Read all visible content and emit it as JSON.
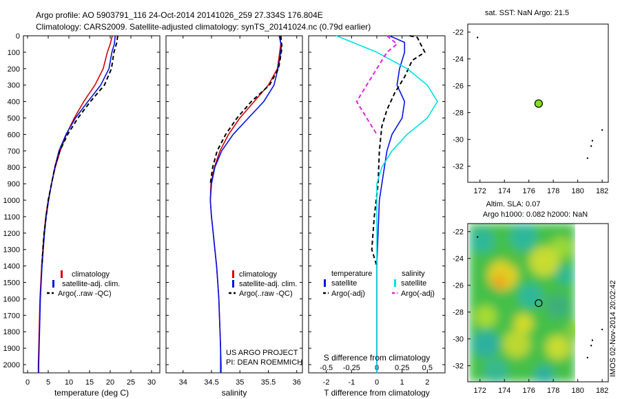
{
  "header": {
    "line1": "Argo profile: AO 5903791_116 24-Oct-2014 20141026_259 27.334S 176.804E",
    "line2": "Climatology: CARS2009. Satellite-adjusted climatology: synTS_20141024.nc (0.79d earlier)"
  },
  "footer": {
    "project": "US ARGO PROJECT",
    "pi": "PI: DEAN ROEMMICH",
    "stamp": "IMOS 02-Nov-2014 20:02:42"
  },
  "colors": {
    "climatology": "#d00000",
    "satellite": "#0010e0",
    "argo": "#000000",
    "sat_salinity": "#00e0e0",
    "argo_salinity": "#e020e0",
    "sst_marker": "#88dd22"
  },
  "chart_data": [
    {
      "type": "line",
      "id": "temperature",
      "xlabel": "temperature (deg C)",
      "xlim": [
        -1,
        32
      ],
      "ylim": [
        0,
        2050
      ],
      "x_ticks": [
        "0",
        "5",
        "10",
        "15",
        "20",
        "25",
        "30"
      ],
      "y_ticks": [
        "0",
        "100",
        "200",
        "300",
        "400",
        "500",
        "600",
        "700",
        "800",
        "900",
        "1000",
        "1100",
        "1200",
        "1300",
        "1400",
        "1500",
        "1600",
        "1700",
        "1800",
        "1900",
        "2000"
      ],
      "legend": [
        "climatology",
        "satellite-adj. clim.",
        "Argo(..raw -QC)"
      ],
      "series": [
        {
          "name": "climatology",
          "style": "solid",
          "color": "#d00000",
          "points": [
            [
              20.5,
              0
            ],
            [
              20,
              50
            ],
            [
              19.3,
              100
            ],
            [
              18.3,
              200
            ],
            [
              16.3,
              300
            ],
            [
              13.6,
              400
            ],
            [
              11.3,
              500
            ],
            [
              9.4,
              600
            ],
            [
              7.9,
              700
            ],
            [
              6.7,
              800
            ],
            [
              5.8,
              900
            ],
            [
              5,
              1000
            ],
            [
              4.4,
              1100
            ],
            [
              4,
              1200
            ],
            [
              3.7,
              1300
            ],
            [
              3.4,
              1400
            ],
            [
              3.2,
              1500
            ],
            [
              3,
              1600
            ],
            [
              2.9,
              1700
            ],
            [
              2.8,
              1800
            ],
            [
              2.7,
              1900
            ],
            [
              2.6,
              2000
            ],
            [
              2.6,
              2050
            ]
          ]
        },
        {
          "name": "satellite-adj. clim.",
          "style": "solid",
          "color": "#0010e0",
          "points": [
            [
              21.2,
              0
            ],
            [
              21,
              50
            ],
            [
              20.4,
              100
            ],
            [
              19.7,
              200
            ],
            [
              17.7,
              300
            ],
            [
              14.6,
              400
            ],
            [
              11.6,
              500
            ],
            [
              9.3,
              600
            ],
            [
              7.6,
              700
            ],
            [
              6.6,
              800
            ],
            [
              5.8,
              900
            ],
            [
              5.1,
              1000
            ],
            [
              4.5,
              1100
            ],
            [
              4.1,
              1200
            ],
            [
              3.8,
              1300
            ],
            [
              3.5,
              1400
            ],
            [
              3.3,
              1500
            ],
            [
              3.1,
              1600
            ],
            [
              3,
              1700
            ],
            [
              2.9,
              1800
            ],
            [
              2.8,
              1900
            ],
            [
              2.7,
              2000
            ],
            [
              2.7,
              2050
            ]
          ]
        },
        {
          "name": "Argo(..raw -QC)",
          "style": "dashed",
          "color": "#000000",
          "points": [
            [
              21.8,
              0
            ],
            [
              21.6,
              40
            ],
            [
              20.9,
              100
            ],
            [
              20.3,
              200
            ],
            [
              18.6,
              300
            ],
            [
              15.2,
              400
            ],
            [
              12.2,
              500
            ],
            [
              9.7,
              600
            ],
            [
              7.8,
              700
            ],
            [
              6.6,
              800
            ],
            [
              5.8,
              900
            ],
            [
              5,
              1000
            ],
            [
              4.5,
              1100
            ],
            [
              4,
              1200
            ],
            [
              3.7,
              1300
            ],
            [
              3.5,
              1400
            ]
          ]
        }
      ]
    },
    {
      "type": "line",
      "id": "salinity",
      "xlabel": "salinity",
      "xlim": [
        33.7,
        36.1
      ],
      "ylim": [
        0,
        2050
      ],
      "x_ticks": [
        "34",
        "34.5",
        "35",
        "35.5",
        "36"
      ],
      "legend": [
        "climatology",
        "satellite-adj. clim.",
        "Argo(..raw -QC)"
      ],
      "series": [
        {
          "name": "climatology",
          "style": "solid",
          "color": "#d00000",
          "points": [
            [
              35.7,
              0
            ],
            [
              35.72,
              50
            ],
            [
              35.7,
              100
            ],
            [
              35.66,
              200
            ],
            [
              35.5,
              300
            ],
            [
              35.25,
              400
            ],
            [
              35,
              500
            ],
            [
              34.8,
              600
            ],
            [
              34.65,
              700
            ],
            [
              34.55,
              800
            ],
            [
              34.49,
              900
            ],
            [
              34.48,
              1000
            ],
            [
              34.5,
              1100
            ],
            [
              34.53,
              1200
            ],
            [
              34.56,
              1300
            ],
            [
              34.59,
              1400
            ],
            [
              34.61,
              1500
            ],
            [
              34.63,
              1600
            ],
            [
              34.64,
              1700
            ],
            [
              34.65,
              1800
            ],
            [
              34.66,
              1900
            ],
            [
              34.67,
              2000
            ],
            [
              34.67,
              2050
            ]
          ]
        },
        {
          "name": "satellite-adj. clim.",
          "style": "solid",
          "color": "#0010e0",
          "points": [
            [
              35.69,
              0
            ],
            [
              35.73,
              60
            ],
            [
              35.71,
              120
            ],
            [
              35.67,
              200
            ],
            [
              35.6,
              300
            ],
            [
              35.42,
              400
            ],
            [
              35.15,
              500
            ],
            [
              34.88,
              600
            ],
            [
              34.68,
              700
            ],
            [
              34.56,
              800
            ],
            [
              34.5,
              900
            ],
            [
              34.48,
              1000
            ],
            [
              34.5,
              1100
            ],
            [
              34.53,
              1200
            ],
            [
              34.56,
              1300
            ],
            [
              34.59,
              1400
            ],
            [
              34.61,
              1500
            ],
            [
              34.63,
              1600
            ],
            [
              34.64,
              1700
            ],
            [
              34.65,
              1800
            ],
            [
              34.66,
              1900
            ],
            [
              34.66,
              2000
            ],
            [
              34.66,
              2050
            ]
          ]
        },
        {
          "name": "Argo(..raw -QC)",
          "style": "dashed",
          "color": "#000000",
          "points": [
            [
              35.72,
              0
            ],
            [
              35.74,
              70
            ],
            [
              35.72,
              120
            ],
            [
              35.68,
              200
            ],
            [
              35.52,
              300
            ],
            [
              35.2,
              400
            ],
            [
              34.95,
              500
            ],
            [
              34.75,
              600
            ],
            [
              34.6,
              700
            ],
            [
              34.52,
              800
            ],
            [
              34.48,
              900
            ]
          ]
        }
      ]
    },
    {
      "type": "line",
      "id": "difference",
      "xlabel": "T difference from climatology",
      "xlabel2": "S difference from climatology",
      "xlim": [
        -2.7,
        2.7
      ],
      "ylim": [
        0,
        2050
      ],
      "x_ticks": [
        "-2",
        "-1",
        "0",
        "1",
        "2"
      ],
      "x_ticks_s": [
        "-0.5",
        "-0.25",
        "0",
        "0.25",
        "0.5"
      ],
      "legend_titles": [
        "temperature",
        "salinity"
      ],
      "legend_temperature": [
        "satellite",
        "Argo(-adj)"
      ],
      "legend_salinity": [
        "satellite",
        "Argo(-adj)"
      ],
      "series": [
        {
          "name": "satellite",
          "group": "temperature",
          "style": "solid",
          "color": "#0010e0",
          "points": [
            [
              0.5,
              0
            ],
            [
              0.8,
              20
            ],
            [
              1.1,
              40
            ],
            [
              1.1,
              100
            ],
            [
              0.9,
              200
            ],
            [
              0.8,
              300
            ],
            [
              1.1,
              400
            ],
            [
              1,
              500
            ],
            [
              0.6,
              600
            ],
            [
              0.4,
              700
            ],
            [
              0.3,
              800
            ],
            [
              0.2,
              900
            ],
            [
              0.1,
              1000
            ],
            [
              0.05,
              1200
            ],
            [
              0,
              1400
            ],
            [
              0,
              2050
            ]
          ]
        },
        {
          "name": "Argo(-adj)",
          "group": "temperature",
          "style": "dashed",
          "color": "#000000",
          "points": [
            [
              1.3,
              0
            ],
            [
              1.6,
              10
            ],
            [
              1.9,
              100
            ],
            [
              1.4,
              150
            ],
            [
              1.1,
              250
            ],
            [
              0.7,
              350
            ],
            [
              0.4,
              450
            ],
            [
              0.2,
              550
            ],
            [
              0.1,
              700
            ],
            [
              0.05,
              900
            ],
            [
              -0.1,
              1100
            ],
            [
              -0.2,
              1300
            ],
            [
              0,
              1400
            ]
          ]
        },
        {
          "name": "satellite",
          "group": "salinity",
          "style": "solid",
          "color": "#00e0e0",
          "points": [
            [
              -0.4,
              0
            ],
            [
              -0.2,
              50
            ],
            [
              0,
              100
            ],
            [
              0.3,
              200
            ],
            [
              0.5,
              300
            ],
            [
              0.6,
              400
            ],
            [
              0.5,
              500
            ],
            [
              0.3,
              600
            ],
            [
              0.15,
              700
            ],
            [
              0.05,
              800
            ],
            [
              0,
              900
            ],
            [
              0,
              2050
            ]
          ]
        },
        {
          "name": "Argo(-adj)",
          "group": "salinity",
          "style": "dashed",
          "color": "#e020e0",
          "points": [
            [
              0.1,
              0
            ],
            [
              0.2,
              50
            ],
            [
              0.1,
              100
            ],
            [
              0,
              200
            ],
            [
              -0.1,
              300
            ],
            [
              -0.2,
              400
            ],
            [
              -0.1,
              500
            ],
            [
              0,
              600
            ]
          ]
        }
      ]
    },
    {
      "type": "scatter",
      "id": "sst-map",
      "title": "sat. SST: NaN Argo: 21.5",
      "xlim": [
        171,
        182.5
      ],
      "ylim": [
        -33.2,
        -21.4
      ],
      "x_ticks": [
        "172",
        "174",
        "176",
        "178",
        "180",
        "182"
      ],
      "y_ticks": [
        "-22",
        "-24",
        "-26",
        "-28",
        "-30",
        "-32"
      ],
      "argo_position": [
        176.8,
        -27.33
      ],
      "coast_points": [
        [
          171.8,
          -22.4
        ],
        [
          181.2,
          -30.1
        ],
        [
          181.1,
          -30.5
        ],
        [
          182,
          -29.3
        ],
        [
          180.8,
          -31.4
        ]
      ]
    },
    {
      "type": "heatmap",
      "id": "sla-map",
      "title": "Altim. SLA: 0.07",
      "subtitle": "Argo h1000: 0.082 h2000: NaN",
      "xlim": [
        171,
        182.5
      ],
      "ylim": [
        -33.2,
        -21.4
      ],
      "x_ticks": [
        "172",
        "174",
        "176",
        "178",
        "180",
        "182"
      ],
      "y_ticks": [
        "-22",
        "-24",
        "-26",
        "-28",
        "-30",
        "-32"
      ],
      "argo_position": [
        176.8,
        -27.33
      ]
    }
  ]
}
